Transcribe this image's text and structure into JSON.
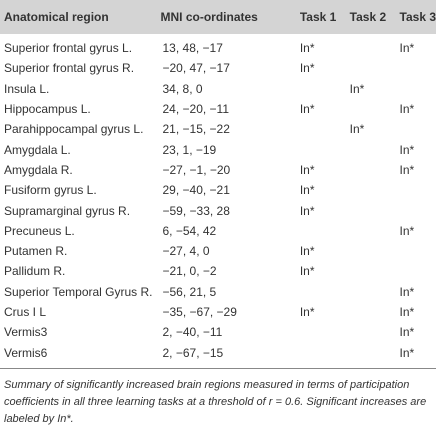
{
  "table": {
    "header": [
      "Anatomical region",
      "MNI co-ordinates",
      "Task 1",
      "Task 2",
      "Task 3"
    ],
    "rows": [
      [
        "Superior frontal gyrus L.",
        "13, 48, −17",
        "In*",
        null,
        "In*"
      ],
      [
        "Superior frontal gyrus R.",
        "−20, 47, −17",
        "In*",
        null,
        null
      ],
      [
        "Insula L.",
        "34, 8, 0",
        null,
        "In*",
        null
      ],
      [
        "Hippocampus L.",
        "24, −20, −11",
        "In*",
        null,
        "In*"
      ],
      [
        "Parahippocampal gyrus L.",
        "21, −15, −22",
        null,
        "In*",
        null
      ],
      [
        "Amygdala L.",
        "23, 1, −19",
        null,
        null,
        "In*"
      ],
      [
        "Amygdala R.",
        "−27, −1, −20",
        "In*",
        null,
        "In*"
      ],
      [
        "Fusiform gyrus L.",
        "29, −40, −21",
        "In*",
        null,
        null
      ],
      [
        "Supramarginal gyrus R.",
        "−59, −33, 28",
        "In*",
        null,
        null
      ],
      [
        "Precuneus L.",
        "6, −54, 42",
        null,
        null,
        "In*"
      ],
      [
        "Putamen R.",
        "−27, 4, 0",
        "In*",
        null,
        null
      ],
      [
        "Pallidum R.",
        "−21, 0, −2",
        "In*",
        null,
        null
      ],
      [
        "Superior Temporal Gyrus R.",
        "−56, 21, 5",
        null,
        null,
        "In*"
      ],
      [
        "Crus I L",
        "−35, −67, −29",
        "In*",
        null,
        "In*"
      ],
      [
        "Vermis3",
        "2, −40, −11",
        null,
        null,
        "In*"
      ],
      [
        "Vermis6",
        "2, −67, −15",
        null,
        null,
        "In*"
      ]
    ]
  },
  "caption": "Summary of significantly increased brain regions measured in terms of participation coefficients in all three learning tasks at a threshold of r = 0.6. Significant increases are labeled by In*."
}
